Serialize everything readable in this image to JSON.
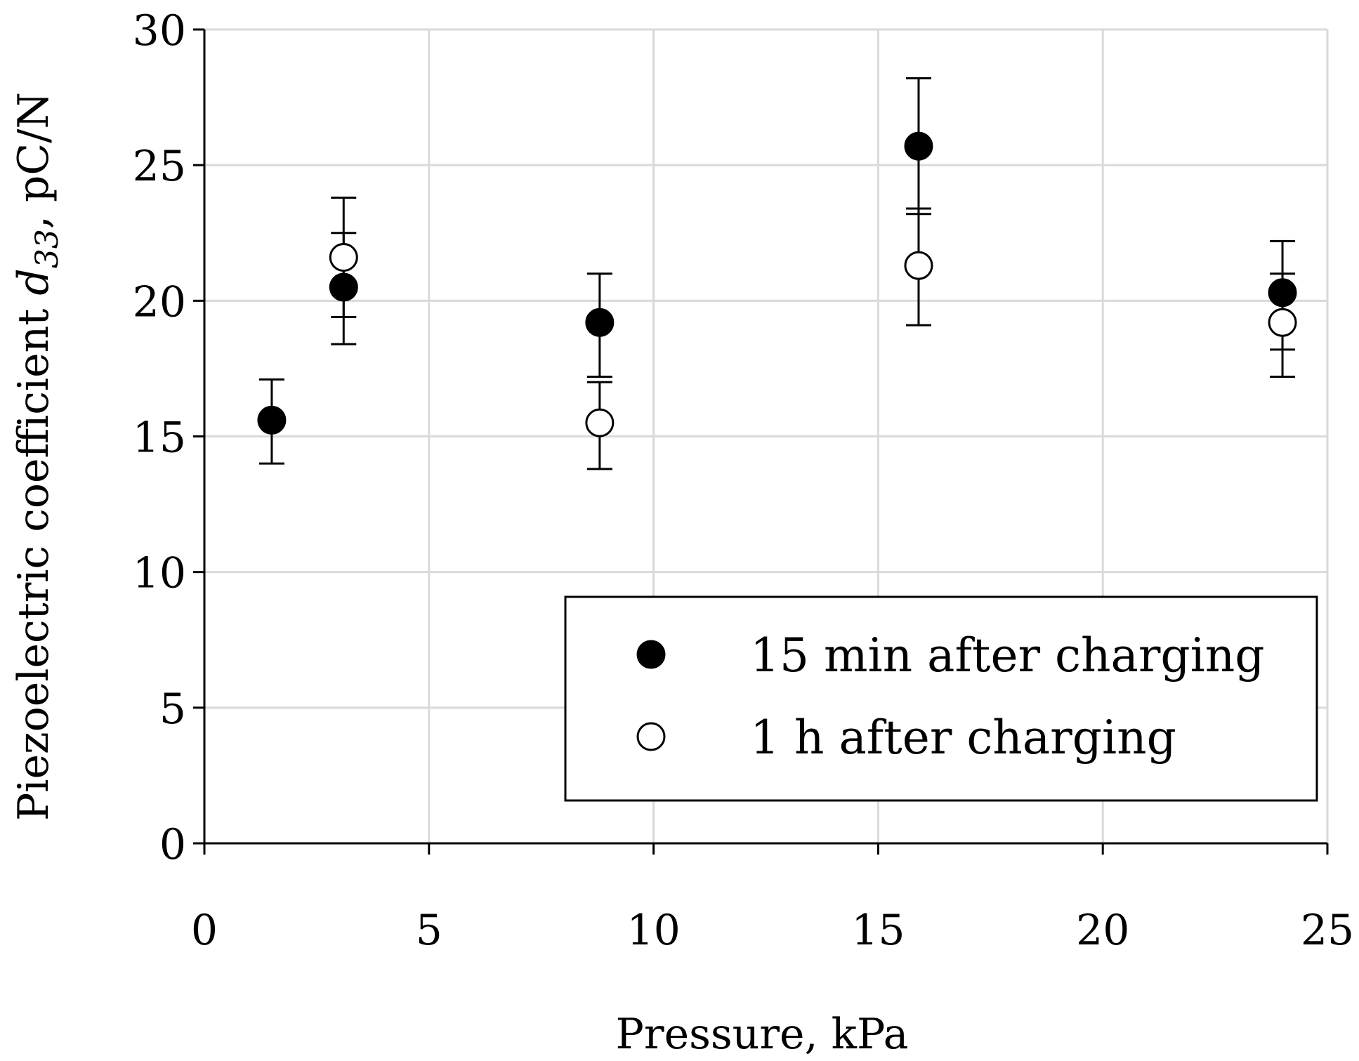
{
  "chart_data": {
    "type": "scatter",
    "title": "",
    "xlabel": "Pressure, kPa",
    "ylabel": {
      "prefix": "Piezoelectric coefficient ",
      "symbol": "d",
      "subscript": "33",
      "suffix": ", pC/N"
    },
    "xlim": [
      0,
      25
    ],
    "ylim": [
      0,
      30
    ],
    "xticks": [
      "0",
      "5",
      "10",
      "15",
      "20",
      "25"
    ],
    "yticks": [
      "0",
      "5",
      "10",
      "15",
      "20",
      "25",
      "30"
    ],
    "grid": true,
    "legend_position": "bottom-right",
    "series": [
      {
        "name": "15 min after charging",
        "marker": "filled-circle",
        "x": [
          1.5,
          3.1,
          8.8,
          15.9,
          24.0
        ],
        "y": [
          15.6,
          20.5,
          19.2,
          25.7,
          20.3
        ],
        "err_low": [
          14.0,
          19.4,
          17.2,
          23.2,
          18.2
        ],
        "err_high": [
          17.1,
          22.5,
          21.0,
          28.2,
          22.2
        ]
      },
      {
        "name": "1 h after charging",
        "marker": "open-circle",
        "x": [
          3.1,
          8.8,
          15.9,
          24.0
        ],
        "y": [
          21.6,
          15.5,
          21.3,
          19.2
        ],
        "err_low": [
          18.4,
          13.8,
          19.1,
          17.2
        ],
        "err_high": [
          23.8,
          17.0,
          23.4,
          21.0
        ]
      }
    ]
  }
}
